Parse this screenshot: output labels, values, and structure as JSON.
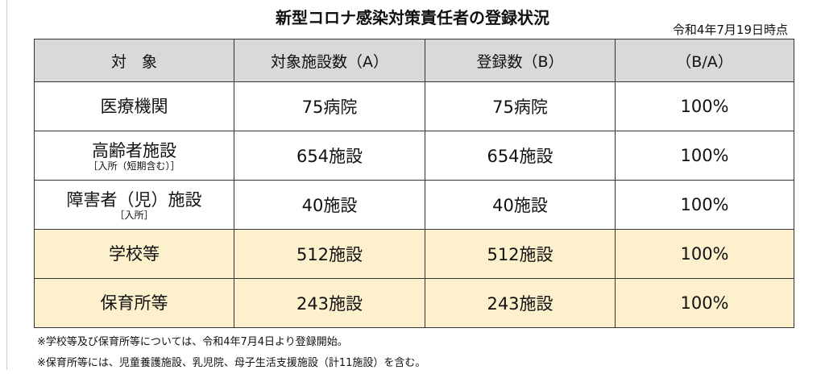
{
  "header": {
    "title": "新型コロナ感染対策責任者の登録状況",
    "date": "令和4年7月19日時点"
  },
  "table": {
    "columns": [
      "対　象",
      "対象施設数（A）",
      "登録数（B）",
      "（B/A）"
    ],
    "rows": [
      {
        "label": "医療機関",
        "cells": [
          "75病院",
          "75病院",
          "100%"
        ]
      },
      {
        "label": "高齢者施設",
        "sublabel": "［入所（短期含む）］",
        "cells": [
          "654施設",
          "654施設",
          "100%"
        ]
      },
      {
        "label": "障害者（児）施設",
        "sublabel": "［入所］",
        "cells": [
          "40施設",
          "40施設",
          "100%"
        ]
      },
      {
        "label": "学校等",
        "cells": [
          "512施設",
          "512施設",
          "100%"
        ]
      },
      {
        "label": "保育所等",
        "cells": [
          "243施設",
          "243施設",
          "100%"
        ]
      }
    ]
  },
  "notes": [
    "※学校等及び保育所等については、令和4年7月4日より登録開始。",
    "※保育所等には、児童養護施設、乳児院、母子生活支援施設（計11施設）を含む。"
  ]
}
